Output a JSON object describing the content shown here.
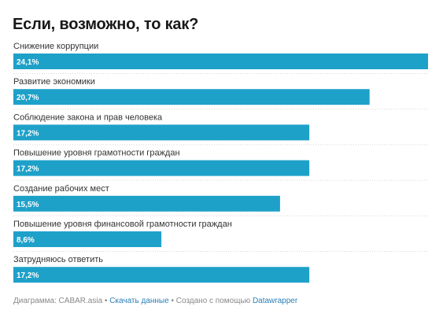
{
  "title": "Если, возможно, то как?",
  "chart_data": {
    "type": "bar",
    "orientation": "horizontal",
    "categories": [
      "Снижение коррупции",
      "Развитие экономики",
      "Соблюдение закона и прав человека",
      "Повышение уровня грамотности граждан",
      "Создание рабочих мест",
      "Повышение уровня финансовой грамотности граждан",
      "Затрудняюсь ответить"
    ],
    "values": [
      24.1,
      20.7,
      17.2,
      17.2,
      15.5,
      8.6,
      17.2
    ],
    "value_labels": [
      "24,1%",
      "20,7%",
      "17,2%",
      "17,2%",
      "15,5%",
      "8,6%",
      "17,2%"
    ],
    "xlim": [
      0,
      24.1
    ],
    "bar_color": "#1ea1c9",
    "separator_color": "#d6d6d6",
    "title": "Если, возможно, то как?"
  },
  "footer": {
    "source": "Диаграмма: CABAR.asia",
    "separator": " • ",
    "download_link": "Скачать данные",
    "created_with": "Создано с помощью ",
    "datawrapper_link": "Datawrapper"
  }
}
